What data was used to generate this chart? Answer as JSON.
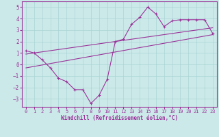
{
  "xlabel": "Windchill (Refroidissement éolien,°C)",
  "bg_color": "#cce9e9",
  "grid_color": "#aad4d4",
  "line_color": "#993399",
  "xlim": [
    -0.5,
    23.5
  ],
  "ylim": [
    -3.7,
    5.5
  ],
  "xticks": [
    0,
    1,
    2,
    3,
    4,
    5,
    6,
    7,
    8,
    9,
    10,
    11,
    12,
    13,
    14,
    15,
    16,
    17,
    18,
    19,
    20,
    21,
    22,
    23
  ],
  "yticks": [
    -3,
    -2,
    -1,
    0,
    1,
    2,
    3,
    4,
    5
  ],
  "main_x": [
    0,
    1,
    2,
    3,
    4,
    5,
    6,
    7,
    8,
    9,
    10,
    11,
    12,
    13,
    14,
    15,
    16,
    17,
    18,
    19,
    20,
    21,
    22,
    23
  ],
  "main_y": [
    1.2,
    1.0,
    0.4,
    -0.3,
    -1.2,
    -1.5,
    -2.2,
    -2.2,
    -3.4,
    -2.7,
    -1.3,
    2.0,
    2.2,
    3.5,
    4.1,
    5.0,
    4.4,
    3.3,
    3.8,
    3.9,
    3.9,
    3.9,
    3.9,
    2.7
  ],
  "trend1_x": [
    0,
    23
  ],
  "trend1_y": [
    0.9,
    3.2
  ],
  "trend2_x": [
    0,
    23
  ],
  "trend2_y": [
    -0.3,
    2.6
  ]
}
